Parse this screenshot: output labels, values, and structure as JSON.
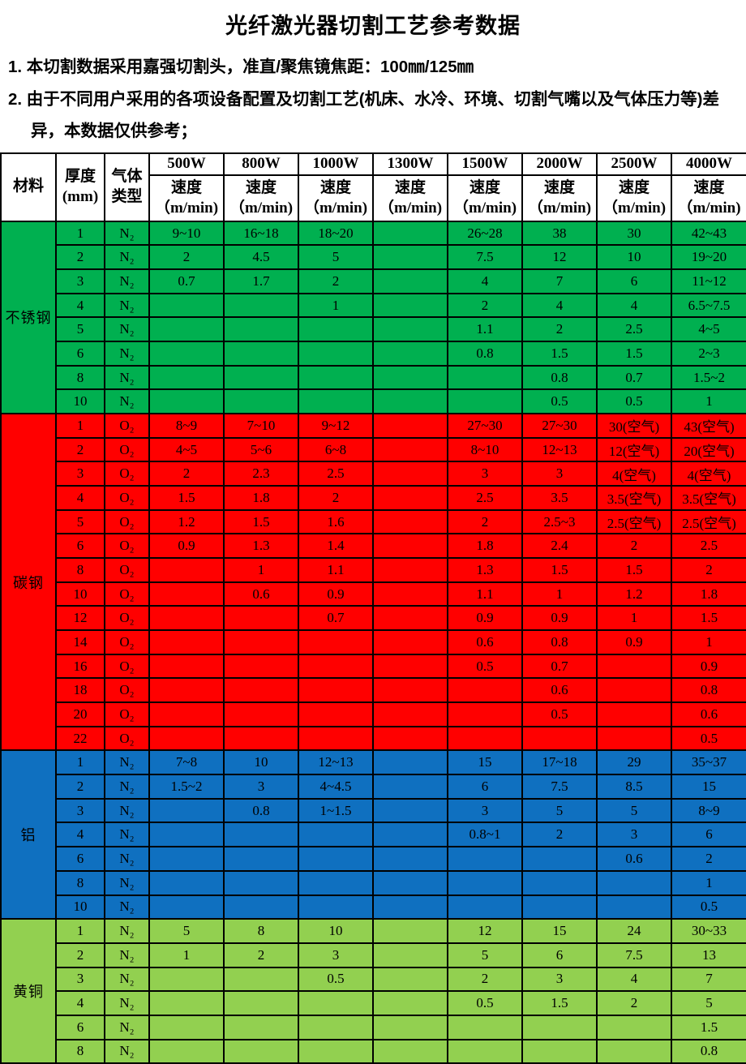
{
  "page": {
    "title": "光纤激光器切割工艺参考数据"
  },
  "notes": [
    "1. 本切割数据采用嘉强切割头，准直/聚焦镜焦距：100㎜/125㎜",
    "2. 由于不同用户采用的各项设备配置及切割工艺(机床、水冷、环境、切割气嘴以及气体压力等)差异，本数据仅供参考；"
  ],
  "colors": {
    "stainless_steel": "#00B050",
    "carbon_steel": "#FF0000",
    "aluminum": "#0F70C0",
    "brass": "#92D050",
    "border": "#000000",
    "header_bg": "#ffffff"
  },
  "table": {
    "header": {
      "material": "材料",
      "thickness_line1": "厚度",
      "thickness_line2": "(mm)",
      "gas_line1": "气体",
      "gas_line2": "类型",
      "powers": [
        "500W",
        "800W",
        "1000W",
        "1300W",
        "1500W",
        "2000W",
        "2500W",
        "4000W"
      ],
      "speed_label": "速度",
      "speed_unit": "（m/min)"
    },
    "sections": [
      {
        "material": "不锈钢",
        "color": "#00B050",
        "rows": [
          {
            "thickness": "1",
            "gas": "N₂",
            "speeds": [
              "9~10",
              "16~18",
              "18~20",
              "",
              "26~28",
              "38",
              "30",
              "42~43"
            ]
          },
          {
            "thickness": "2",
            "gas": "N₂",
            "speeds": [
              "2",
              "4.5",
              "5",
              "",
              "7.5",
              "12",
              "10",
              "19~20"
            ]
          },
          {
            "thickness": "3",
            "gas": "N₂",
            "speeds": [
              "0.7",
              "1.7",
              "2",
              "",
              "4",
              "7",
              "6",
              "11~12"
            ]
          },
          {
            "thickness": "4",
            "gas": "N₂",
            "speeds": [
              "",
              "",
              "1",
              "",
              "2",
              "4",
              "4",
              "6.5~7.5"
            ]
          },
          {
            "thickness": "5",
            "gas": "N₂",
            "speeds": [
              "",
              "",
              "",
              "",
              "1.1",
              "2",
              "2.5",
              "4~5"
            ]
          },
          {
            "thickness": "6",
            "gas": "N₂",
            "speeds": [
              "",
              "",
              "",
              "",
              "0.8",
              "1.5",
              "1.5",
              "2~3"
            ]
          },
          {
            "thickness": "8",
            "gas": "N₂",
            "speeds": [
              "",
              "",
              "",
              "",
              "",
              "0.8",
              "0.7",
              "1.5~2"
            ]
          },
          {
            "thickness": "10",
            "gas": "N₂",
            "speeds": [
              "",
              "",
              "",
              "",
              "",
              "0.5",
              "0.5",
              "1"
            ]
          }
        ]
      },
      {
        "material": "碳钢",
        "color": "#FF0000",
        "rows": [
          {
            "thickness": "1",
            "gas": "O₂",
            "speeds": [
              "8~9",
              "7~10",
              "9~12",
              "",
              "27~30",
              "27~30",
              "30(空气)",
              "43(空气)"
            ]
          },
          {
            "thickness": "2",
            "gas": "O₂",
            "speeds": [
              "4~5",
              "5~6",
              "6~8",
              "",
              "8~10",
              "12~13",
              "12(空气)",
              "20(空气)"
            ]
          },
          {
            "thickness": "3",
            "gas": "O₂",
            "speeds": [
              "2",
              "2.3",
              "2.5",
              "",
              "3",
              "3",
              "4(空气)",
              "4(空气)"
            ]
          },
          {
            "thickness": "4",
            "gas": "O₂",
            "speeds": [
              "1.5",
              "1.8",
              "2",
              "",
              "2.5",
              "3.5",
              "3.5(空气)",
              "3.5(空气)"
            ]
          },
          {
            "thickness": "5",
            "gas": "O₂",
            "speeds": [
              "1.2",
              "1.5",
              "1.6",
              "",
              "2",
              "2.5~3",
              "2.5(空气)",
              "2.5(空气)"
            ]
          },
          {
            "thickness": "6",
            "gas": "O₂",
            "speeds": [
              "0.9",
              "1.3",
              "1.4",
              "",
              "1.8",
              "2.4",
              "2",
              "2.5"
            ]
          },
          {
            "thickness": "8",
            "gas": "O₂",
            "speeds": [
              "",
              "1",
              "1.1",
              "",
              "1.3",
              "1.5",
              "1.5",
              "2"
            ]
          },
          {
            "thickness": "10",
            "gas": "O₂",
            "speeds": [
              "",
              "0.6",
              "0.9",
              "",
              "1.1",
              "1",
              "1.2",
              "1.8"
            ]
          },
          {
            "thickness": "12",
            "gas": "O₂",
            "speeds": [
              "",
              "",
              "0.7",
              "",
              "0.9",
              "0.9",
              "1",
              "1.5"
            ]
          },
          {
            "thickness": "14",
            "gas": "O₂",
            "speeds": [
              "",
              "",
              "",
              "",
              "0.6",
              "0.8",
              "0.9",
              "1"
            ]
          },
          {
            "thickness": "16",
            "gas": "O₂",
            "speeds": [
              "",
              "",
              "",
              "",
              "0.5",
              "0.7",
              "",
              "0.9"
            ]
          },
          {
            "thickness": "18",
            "gas": "O₂",
            "speeds": [
              "",
              "",
              "",
              "",
              "",
              "0.6",
              "",
              "0.8"
            ]
          },
          {
            "thickness": "20",
            "gas": "O₂",
            "speeds": [
              "",
              "",
              "",
              "",
              "",
              "0.5",
              "",
              "0.6"
            ]
          },
          {
            "thickness": "22",
            "gas": "O₂",
            "speeds": [
              "",
              "",
              "",
              "",
              "",
              "",
              "",
              "0.5"
            ]
          }
        ]
      },
      {
        "material": "铝",
        "color": "#0F70C0",
        "rows": [
          {
            "thickness": "1",
            "gas": "N₂",
            "speeds": [
              "7~8",
              "10",
              "12~13",
              "",
              "15",
              "17~18",
              "29",
              "35~37"
            ]
          },
          {
            "thickness": "2",
            "gas": "N₂",
            "speeds": [
              "1.5~2",
              "3",
              "4~4.5",
              "",
              "6",
              "7.5",
              "8.5",
              "15"
            ]
          },
          {
            "thickness": "3",
            "gas": "N₂",
            "speeds": [
              "",
              "0.8",
              "1~1.5",
              "",
              "3",
              "5",
              "5",
              "8~9"
            ]
          },
          {
            "thickness": "4",
            "gas": "N₂",
            "speeds": [
              "",
              "",
              "",
              "",
              "0.8~1",
              "2",
              "3",
              "6"
            ]
          },
          {
            "thickness": "6",
            "gas": "N₂",
            "speeds": [
              "",
              "",
              "",
              "",
              "",
              "",
              "0.6",
              "2"
            ]
          },
          {
            "thickness": "8",
            "gas": "N₂",
            "speeds": [
              "",
              "",
              "",
              "",
              "",
              "",
              "",
              "1"
            ]
          },
          {
            "thickness": "10",
            "gas": "N₂",
            "speeds": [
              "",
              "",
              "",
              "",
              "",
              "",
              "",
              "0.5"
            ]
          }
        ]
      },
      {
        "material": "黄铜",
        "color": "#92D050",
        "rows": [
          {
            "thickness": "1",
            "gas": "N₂",
            "speeds": [
              "5",
              "8",
              "10",
              "",
              "12",
              "15",
              "24",
              "30~33"
            ]
          },
          {
            "thickness": "2",
            "gas": "N₂",
            "speeds": [
              "1",
              "2",
              "3",
              "",
              "5",
              "6",
              "7.5",
              "13"
            ]
          },
          {
            "thickness": "3",
            "gas": "N₂",
            "speeds": [
              "",
              "",
              "0.5",
              "",
              "2",
              "3",
              "4",
              "7"
            ]
          },
          {
            "thickness": "4",
            "gas": "N₂",
            "speeds": [
              "",
              "",
              "",
              "",
              "0.5",
              "1.5",
              "2",
              "5"
            ]
          },
          {
            "thickness": "6",
            "gas": "N₂",
            "speeds": [
              "",
              "",
              "",
              "",
              "",
              "",
              "",
              "1.5"
            ]
          },
          {
            "thickness": "8",
            "gas": "N₂",
            "speeds": [
              "",
              "",
              "",
              "",
              "",
              "",
              "",
              "0.8"
            ]
          }
        ]
      }
    ]
  }
}
